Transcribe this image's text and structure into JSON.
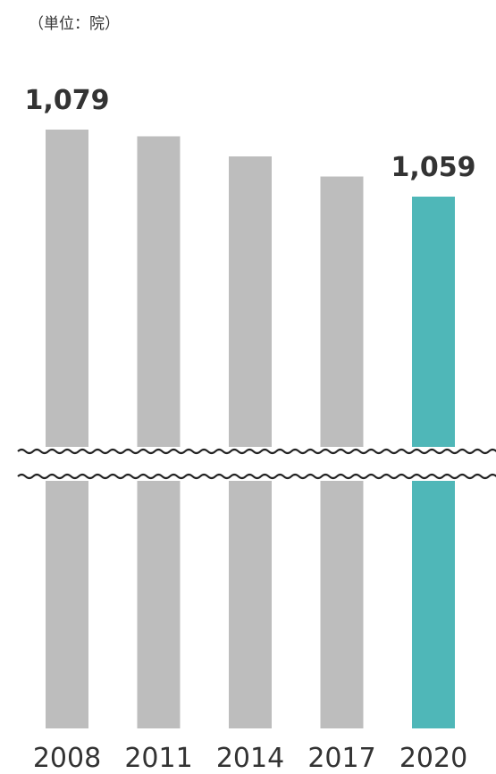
{
  "unit_label": "（単位：院）",
  "chart_data": {
    "type": "bar",
    "categories": [
      "2008",
      "2011",
      "2014",
      "2017",
      "2020"
    ],
    "values": [
      1079,
      1077,
      1071,
      1065,
      1059
    ],
    "data_labels": [
      "1,079",
      "",
      "",
      "",
      "1,059"
    ],
    "highlight_index": 4,
    "axis_break": true,
    "colors": {
      "bar": "#bdbdbd",
      "highlight": "#4fb7b8",
      "text": "#333333"
    }
  }
}
